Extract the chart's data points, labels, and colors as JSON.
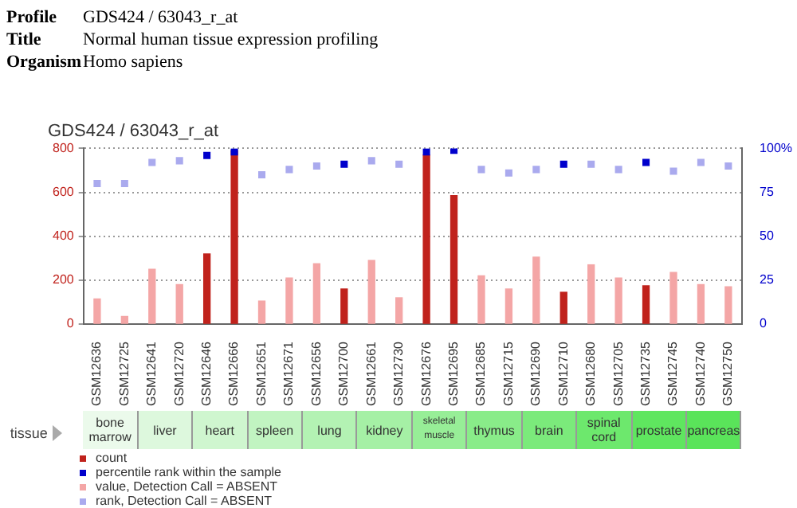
{
  "chart_data": {
    "type": "bar",
    "title": "GDS424 / 63043_r_at",
    "annotations": [
      "Profile",
      "GDS424 / 63043_r_at",
      "Title",
      "Normal human tissue expression profiling",
      "Organism",
      "Homo sapiens",
      "tissue",
      "bone marrow",
      "liver",
      "heart",
      "spleen",
      "lung",
      "kidney",
      "skeletal muscle",
      "thymus",
      "brain",
      "spinal cord",
      "prostate",
      "pancreas"
    ],
    "categories": [
      "GSM12636",
      "GSM12725",
      "GSM12641",
      "GSM12720",
      "GSM12646",
      "GSM12666",
      "GSM12651",
      "GSM12671",
      "GSM12656",
      "GSM12700",
      "GSM12661",
      "GSM12730",
      "GSM12676",
      "GSM12695",
      "GSM12685",
      "GSM12715",
      "GSM12690",
      "GSM12710",
      "GSM12680",
      "GSM12705",
      "GSM12735",
      "GSM12745",
      "GSM12740",
      "GSM12750"
    ],
    "series": [
      {
        "name": "count",
        "color": "#c0221c",
        "values": [
          null,
          null,
          null,
          null,
          320,
          790,
          null,
          null,
          null,
          160,
          null,
          null,
          770,
          585,
          null,
          null,
          null,
          145,
          null,
          null,
          175,
          null,
          null,
          null
        ]
      },
      {
        "name": "percentile rank within the sample",
        "type": "scatter",
        "axis": "y2",
        "color": "#0000cc",
        "values": [
          null,
          null,
          null,
          null,
          96,
          98,
          null,
          null,
          null,
          91,
          null,
          null,
          98,
          99,
          null,
          null,
          null,
          91,
          null,
          null,
          92,
          null,
          null,
          null
        ]
      },
      {
        "name": "value, Detection Call = ABSENT",
        "color": "#f4a6a6",
        "values": [
          115,
          35,
          250,
          180,
          null,
          null,
          105,
          210,
          275,
          null,
          290,
          120,
          null,
          null,
          220,
          160,
          305,
          null,
          270,
          210,
          null,
          235,
          180,
          170
        ]
      },
      {
        "name": "rank, Detection Call = ABSENT",
        "type": "scatter",
        "axis": "y2",
        "color": "#aaaaee",
        "values": [
          80,
          80,
          92,
          93,
          null,
          null,
          85,
          88,
          90,
          null,
          93,
          91,
          null,
          null,
          88,
          86,
          88,
          null,
          91,
          88,
          null,
          87,
          92,
          90
        ]
      }
    ],
    "ylim": [
      0,
      800
    ],
    "yticks": [
      0,
      200,
      400,
      600,
      800
    ],
    "y2lim": [
      0,
      100
    ],
    "y2ticks": [
      0,
      25,
      50,
      75,
      {
        "value": 100,
        "label": "100%"
      }
    ],
    "grid": "y",
    "legend": "bottom",
    "marker": "square"
  }
}
